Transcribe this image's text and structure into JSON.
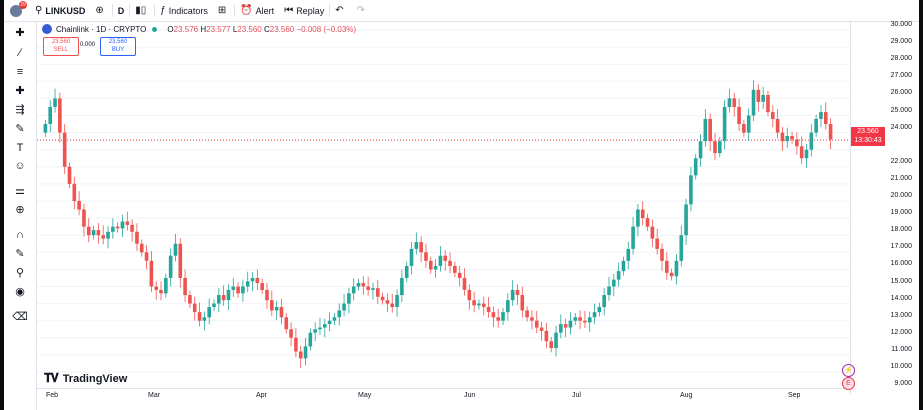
{
  "toolbar": {
    "notification_count": "29",
    "symbol": "LINKUSD",
    "interval": "D",
    "indicators": "Indicators",
    "alert": "Alert",
    "replay": "Replay"
  },
  "legend": {
    "title": "Chainlink · 1D · CRYPTO",
    "o_key": "O",
    "o": "23.576",
    "h_key": "H",
    "h": "23.577",
    "l_key": "L",
    "l": "23.560",
    "c_key": "C",
    "c": "23.560",
    "change": "−0.008 (−0.03%)"
  },
  "trade": {
    "sell_price": "23.560",
    "sell_label": "SELL",
    "spread": "0.000",
    "buy_price": "23.560",
    "buy_label": "BUY"
  },
  "price_axis": {
    "labels": [
      "30.000",
      "29.000",
      "28.000",
      "27.000",
      "26.000",
      "25.000",
      "24.000",
      "22.000",
      "21.000",
      "20.000",
      "19.000",
      "18.000",
      "17.000",
      "16.000",
      "15.000",
      "14.000",
      "13.000",
      "12.000",
      "11.000",
      "10.000",
      "9.000"
    ],
    "current_price": "23.560",
    "countdown": "13:30:43"
  },
  "time_axis": {
    "labels": [
      "Feb",
      "Mar",
      "Apr",
      "May",
      "Jun",
      "Jul",
      "Aug",
      "Sep"
    ]
  },
  "brand": "TradingView",
  "colors": {
    "up": "#26a69a",
    "down": "#ef5350",
    "accent": "#2962ff"
  },
  "chart_data": {
    "type": "candlestick",
    "title": "Chainlink · 1D · CRYPTO",
    "ylim": [
      9,
      30
    ],
    "x_ticks": [
      "Feb",
      "Mar",
      "Apr",
      "May",
      "Jun",
      "Jul",
      "Aug",
      "Sep"
    ],
    "closes": [
      24.5,
      25.5,
      26.0,
      24.0,
      22.0,
      21.0,
      20.0,
      19.5,
      18.5,
      18.0,
      18.3,
      18.0,
      17.8,
      18.2,
      18.5,
      18.4,
      18.8,
      18.6,
      18.2,
      17.5,
      17.0,
      16.5,
      15.0,
      14.8,
      14.6,
      15.5,
      16.8,
      17.5,
      15.5,
      14.5,
      14.0,
      13.5,
      13.0,
      13.2,
      13.8,
      14.0,
      14.5,
      14.2,
      14.8,
      15.0,
      14.6,
      15.0,
      15.3,
      15.5,
      15.2,
      14.8,
      14.2,
      13.6,
      13.8,
      13.2,
      12.5,
      12.0,
      11.2,
      10.8,
      11.5,
      12.3,
      12.5,
      12.6,
      12.8,
      13.0,
      13.2,
      13.6,
      14.0,
      14.6,
      15.0,
      15.2,
      15.0,
      14.8,
      14.9,
      14.4,
      14.2,
      14.0,
      13.8,
      14.5,
      15.5,
      16.2,
      17.2,
      17.6,
      17.0,
      16.5,
      16.0,
      16.2,
      16.8,
      16.5,
      16.2,
      15.8,
      15.5,
      14.8,
      14.2,
      13.9,
      14.0,
      13.8,
      13.5,
      13.2,
      13.0,
      13.5,
      14.2,
      14.8,
      14.5,
      13.6,
      13.2,
      13.0,
      12.6,
      12.4,
      11.8,
      11.4,
      12.3,
      12.8,
      12.6,
      13.0,
      13.2,
      13.0,
      12.9,
      13.2,
      13.5,
      13.8,
      14.5,
      15.0,
      15.4,
      15.9,
      16.5,
      17.2,
      18.5,
      19.5,
      19.0,
      18.5,
      17.8,
      17.2,
      16.5,
      15.8,
      15.6,
      16.5,
      18.0,
      19.8,
      21.5,
      22.5,
      23.5,
      24.8,
      23.5,
      22.8,
      23.5,
      25.5,
      26.0,
      25.5,
      24.5,
      24.0,
      25.0,
      26.5,
      25.8,
      26.2,
      25.2,
      24.8,
      24.0,
      23.5,
      23.8,
      23.6,
      23.2,
      22.5,
      23.0,
      24.0,
      24.8,
      25.2,
      24.5,
      23.6
    ]
  }
}
